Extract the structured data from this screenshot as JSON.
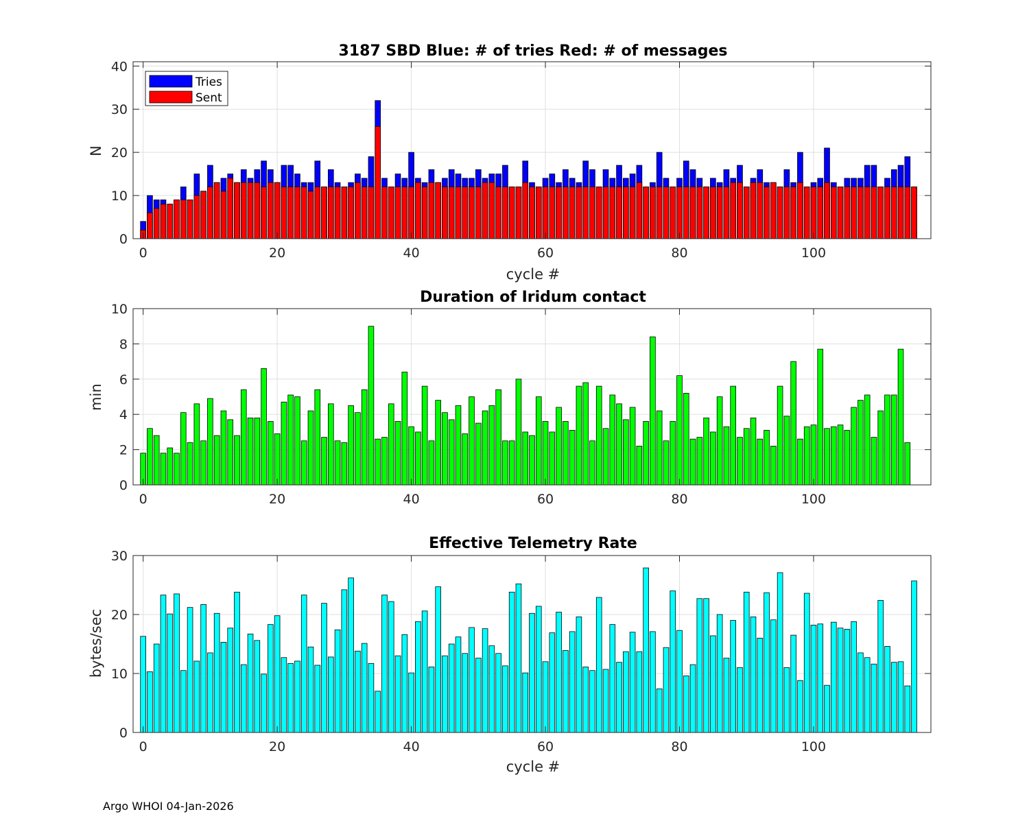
{
  "footer": "Argo WHOI 04-Jan-2026",
  "chart_data": [
    {
      "type": "bar",
      "id": "tries-sent",
      "title": "3187 SBD  Blue: # of tries   Red: # of messages",
      "xlabel": "cycle #",
      "ylabel": "N",
      "xlim": [
        -1.5,
        117.5
      ],
      "ylim": [
        0,
        41
      ],
      "xticks": [
        0,
        20,
        40,
        60,
        80,
        100
      ],
      "yticks": [
        0,
        10,
        20,
        30,
        40
      ],
      "legend": {
        "position": "top-left",
        "entries": [
          "Tries",
          "Sent"
        ]
      },
      "colors": {
        "tries": "#0000ff",
        "sent": "#ff0000"
      },
      "series": [
        {
          "name": "Tries",
          "values": [
            4,
            10,
            9,
            9,
            8,
            9,
            12,
            9,
            15,
            11,
            17,
            13,
            14,
            15,
            13,
            16,
            14,
            16,
            18,
            16,
            13,
            17,
            17,
            15,
            13,
            13,
            18,
            12,
            16,
            13,
            12,
            13,
            15,
            14,
            19,
            32,
            14,
            12,
            15,
            14,
            20,
            14,
            13,
            16,
            13,
            14,
            16,
            15,
            14,
            14,
            16,
            14,
            15,
            15,
            17,
            12,
            12,
            18,
            13,
            12,
            14,
            15,
            13,
            16,
            14,
            13,
            18,
            16,
            12,
            16,
            14,
            17,
            14,
            15,
            17,
            12,
            13,
            20,
            14,
            12,
            14,
            18,
            16,
            14,
            12,
            14,
            13,
            16,
            14,
            17,
            12,
            14,
            16,
            13,
            13,
            12,
            16,
            13,
            20,
            12,
            13,
            14,
            21,
            13,
            12,
            14,
            14,
            14,
            17,
            17,
            12,
            14,
            16,
            17,
            19,
            12
          ]
        },
        {
          "name": "Sent",
          "values": [
            2,
            6,
            7,
            8,
            8,
            9,
            9,
            9,
            10,
            11,
            12,
            13,
            11,
            14,
            13,
            13,
            13,
            13,
            12,
            13,
            13,
            12,
            12,
            12,
            12,
            11,
            12,
            12,
            12,
            12,
            12,
            12,
            13,
            12,
            12,
            26,
            12,
            12,
            12,
            12,
            12,
            13,
            12,
            13,
            13,
            12,
            12,
            12,
            12,
            12,
            12,
            13,
            13,
            12,
            12,
            12,
            12,
            13,
            12,
            12,
            12,
            12,
            12,
            12,
            12,
            12,
            12,
            12,
            12,
            12,
            12,
            12,
            12,
            12,
            13,
            12,
            12,
            12,
            12,
            12,
            12,
            12,
            12,
            12,
            12,
            12,
            12,
            12,
            13,
            13,
            12,
            13,
            13,
            12,
            13,
            12,
            12,
            12,
            13,
            12,
            12,
            12,
            13,
            12,
            12,
            12,
            12,
            12,
            12,
            12,
            12,
            12,
            12,
            12,
            12,
            12
          ]
        }
      ]
    },
    {
      "type": "bar",
      "id": "duration",
      "title": "Duration of Iridum contact",
      "xlabel": "",
      "ylabel": "min",
      "xlim": [
        -1.5,
        117.5
      ],
      "ylim": [
        0,
        10
      ],
      "xticks": [
        0,
        20,
        40,
        60,
        80,
        100
      ],
      "yticks": [
        0,
        2,
        4,
        6,
        8,
        10
      ],
      "colors": {
        "bar": "#00ff00"
      },
      "series": [
        {
          "name": "Duration",
          "values": [
            1.8,
            3.2,
            2.8,
            1.8,
            2.1,
            1.8,
            4.1,
            2.4,
            4.6,
            2.5,
            4.9,
            2.8,
            4.2,
            3.7,
            2.8,
            5.4,
            3.8,
            3.8,
            6.6,
            3.6,
            2.9,
            4.7,
            5.1,
            5.0,
            2.5,
            4.2,
            5.4,
            2.7,
            4.6,
            2.5,
            2.4,
            4.5,
            4.1,
            5.4,
            9.0,
            2.6,
            2.7,
            4.6,
            3.6,
            6.4,
            3.3,
            3.0,
            5.6,
            2.5,
            4.8,
            4.1,
            3.7,
            4.5,
            2.9,
            5.0,
            3.5,
            4.2,
            4.5,
            5.4,
            2.5,
            2.5,
            6.0,
            3.0,
            2.8,
            5.0,
            3.6,
            3.0,
            4.4,
            3.6,
            3.1,
            5.6,
            5.8,
            2.5,
            5.6,
            3.2,
            5.1,
            4.6,
            3.7,
            4.4,
            2.2,
            3.6,
            8.4,
            4.2,
            2.5,
            3.6,
            6.2,
            5.2,
            2.6,
            2.7,
            3.8,
            3.0,
            5.0,
            3.3,
            5.6,
            2.7,
            3.2,
            3.8,
            2.6,
            3.1,
            2.2,
            5.6,
            3.9,
            7.0,
            2.6,
            3.3,
            3.4,
            7.7,
            3.2,
            3.3,
            3.4,
            3.1,
            4.4,
            4.8,
            5.1,
            2.7,
            4.2,
            5.1,
            5.1,
            7.7,
            2.4
          ]
        }
      ]
    },
    {
      "type": "bar",
      "id": "telemetry-rate",
      "title": "Effective Telemetry Rate",
      "xlabel": "cycle #",
      "ylabel": "bytes/sec",
      "xlim": [
        -1.5,
        117.5
      ],
      "ylim": [
        0,
        30
      ],
      "xticks": [
        0,
        20,
        40,
        60,
        80,
        100
      ],
      "yticks": [
        0,
        10,
        20,
        30
      ],
      "colors": {
        "bar": "#00ffff"
      },
      "series": [
        {
          "name": "Rate",
          "values": [
            16.3,
            10.3,
            15.0,
            23.3,
            20.1,
            23.5,
            10.5,
            21.2,
            12.1,
            21.7,
            13.5,
            20.2,
            15.3,
            17.7,
            23.8,
            11.5,
            16.7,
            15.6,
            9.9,
            18.3,
            19.8,
            12.7,
            11.7,
            12.1,
            23.3,
            14.5,
            11.4,
            21.9,
            12.8,
            17.4,
            24.2,
            26.2,
            13.8,
            15.1,
            11.7,
            7.0,
            23.3,
            22.2,
            13.0,
            16.6,
            10.1,
            18.8,
            20.6,
            11.1,
            24.7,
            13.0,
            15.0,
            16.2,
            13.4,
            17.8,
            12.6,
            17.6,
            14.7,
            13.4,
            11.3,
            23.8,
            25.2,
            10.1,
            20.2,
            21.4,
            12.0,
            16.9,
            20.4,
            13.9,
            17.1,
            19.6,
            11.1,
            10.5,
            22.9,
            10.7,
            18.3,
            11.9,
            13.7,
            17.0,
            13.7,
            27.9,
            17.1,
            7.4,
            14.4,
            24.0,
            17.3,
            9.6,
            11.5,
            22.7,
            22.7,
            16.4,
            20.0,
            12.6,
            19.0,
            11.0,
            23.8,
            19.6,
            16.0,
            23.7,
            19.1,
            27.1,
            11.0,
            16.5,
            8.8,
            23.6,
            18.2,
            18.4,
            8.0,
            18.7,
            17.7,
            17.5,
            18.8,
            13.5,
            12.7,
            11.6,
            22.4,
            14.6,
            11.9,
            12.0,
            7.9,
            25.7
          ]
        }
      ]
    }
  ]
}
